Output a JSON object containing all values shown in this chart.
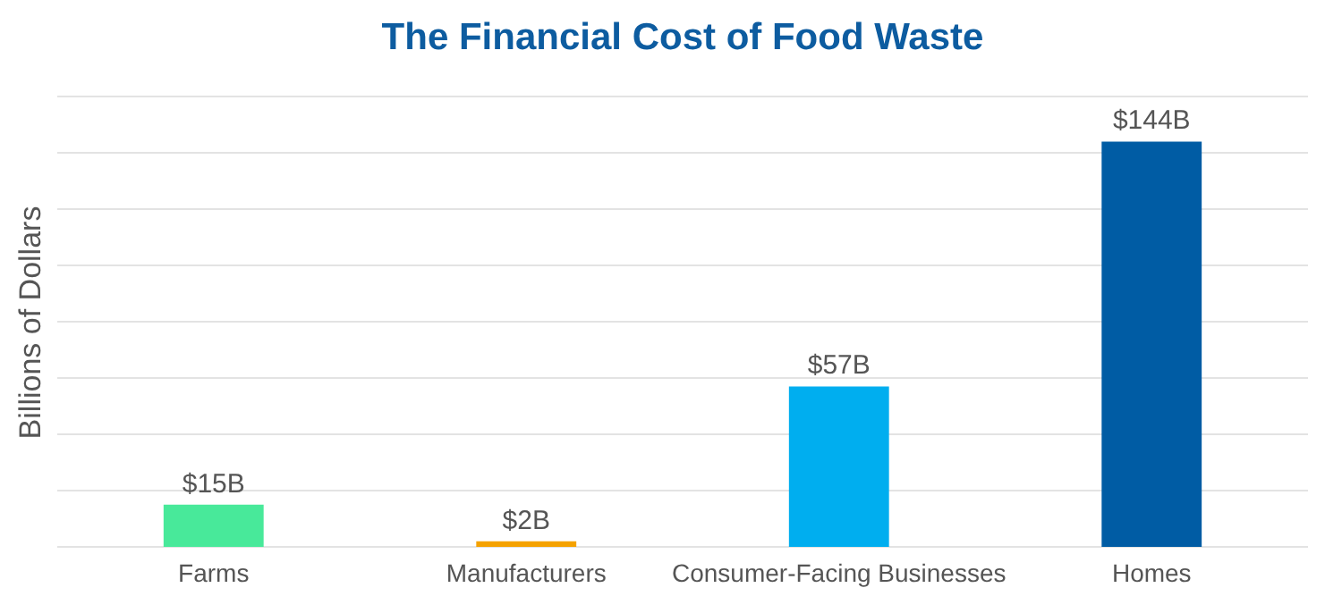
{
  "chart_data": {
    "type": "bar",
    "title": "The Financial Cost of Food Waste",
    "ylabel": "Billions of Dollars",
    "categories": [
      "Farms",
      "Manufacturers",
      "Consumer-Facing Businesses",
      "Homes"
    ],
    "values": [
      15,
      2,
      57,
      144
    ],
    "colors": [
      "#48e99a",
      "#f5a200",
      "#00aeef",
      "#005ca4"
    ],
    "value_labels": [
      "$15B",
      "$2B",
      "$57B",
      "$144B"
    ],
    "ylim": [
      0,
      160
    ],
    "yticks": [
      {
        "value": 0,
        "label": null
      },
      {
        "value": 20,
        "label": null
      },
      {
        "value": 40,
        "label": null
      },
      {
        "value": 60,
        "label": null
      },
      {
        "value": 80,
        "label": null
      },
      {
        "value": 100,
        "label": null
      },
      {
        "value": 120,
        "label": null
      },
      {
        "value": 140,
        "label": null
      },
      {
        "value": 160,
        "label": null
      }
    ],
    "grid": "y",
    "tick_labels": "x"
  }
}
